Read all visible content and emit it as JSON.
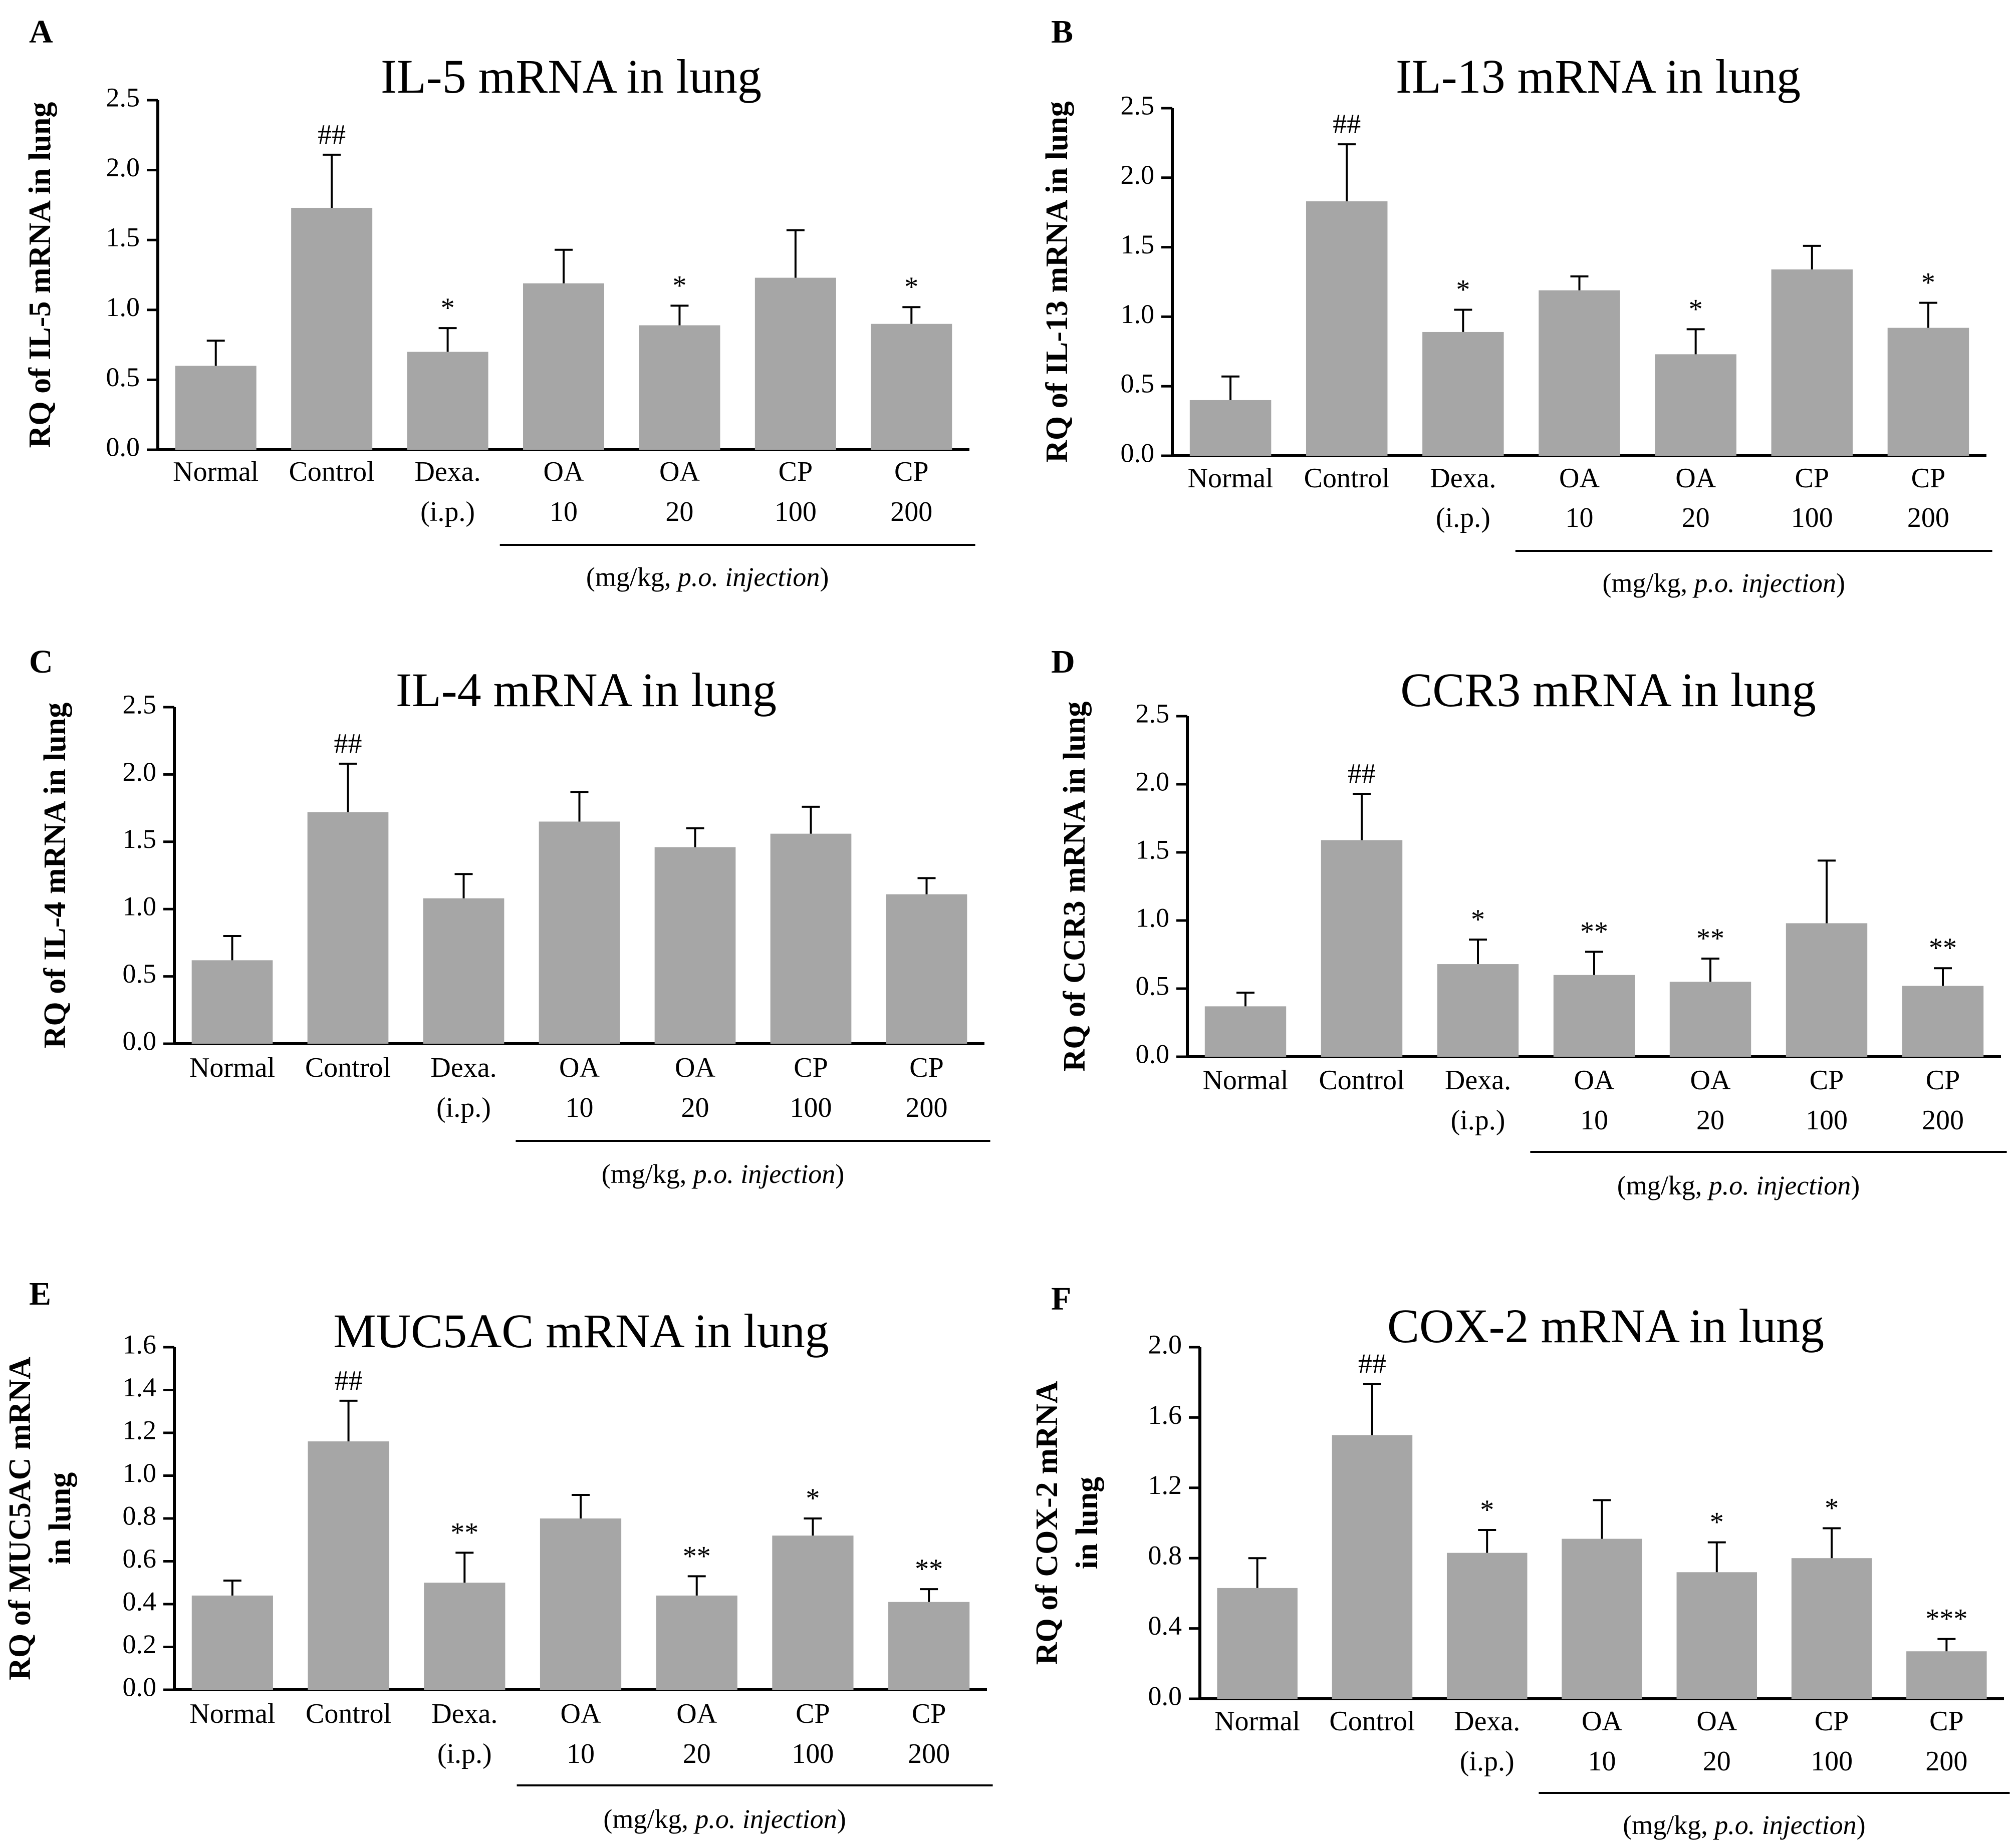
{
  "figure": {
    "group_label_prefix": "(mg/kg,",
    "group_label_route": "p.o. injection",
    "group_label_suffix": ")"
  },
  "colors": {
    "bar": "#a6a6a6",
    "axis": "#000000",
    "error": "#000000",
    "text": "#000000"
  },
  "chart_data": [
    {
      "panel": "A",
      "type": "bar",
      "title": "IL-5 mRNA in lung",
      "ylabel": "RQ of IL-5 mRNA in lung",
      "ylabel_lines": [
        "RQ of IL-5 mRNA in lung"
      ],
      "ylim": [
        0,
        2.5
      ],
      "yticks": [
        "0.0",
        "0.5",
        "1.0",
        "1.5",
        "2.0",
        "2.5"
      ],
      "categories": [
        [
          "Normal"
        ],
        [
          "Control"
        ],
        [
          "Dexa.",
          "(i.p.)"
        ],
        [
          "OA",
          "10"
        ],
        [
          "OA",
          "20"
        ],
        [
          "CP",
          "100"
        ],
        [
          "CP",
          "200"
        ]
      ],
      "values": [
        0.6,
        1.73,
        0.7,
        1.19,
        0.89,
        1.23,
        0.9
      ],
      "errors": [
        0.18,
        0.38,
        0.17,
        0.24,
        0.14,
        0.34,
        0.12
      ],
      "annotations": [
        "",
        "##",
        "*",
        "",
        "*",
        "",
        "*"
      ]
    },
    {
      "panel": "B",
      "type": "bar",
      "title": "IL-13 mRNA in lung",
      "ylabel": "RQ of IL-13 mRNA in lung",
      "ylabel_lines": [
        "RQ of IL-13 mRNA in lung"
      ],
      "ylim": [
        0,
        2.5
      ],
      "yticks": [
        "0.0",
        "0.5",
        "1.0",
        "1.5",
        "2.0",
        "2.5"
      ],
      "categories": [
        [
          "Normal"
        ],
        [
          "Control"
        ],
        [
          "Dexa.",
          "(i.p.)"
        ],
        [
          "OA",
          "10"
        ],
        [
          "OA",
          "20"
        ],
        [
          "CP",
          "100"
        ],
        [
          "CP",
          "200"
        ]
      ],
      "values": [
        0.4,
        1.83,
        0.89,
        1.19,
        0.73,
        1.34,
        0.92
      ],
      "errors": [
        0.17,
        0.41,
        0.16,
        0.1,
        0.18,
        0.17,
        0.18
      ],
      "annotations": [
        "",
        "##",
        "*",
        "",
        "*",
        "",
        "*"
      ]
    },
    {
      "panel": "C",
      "type": "bar",
      "title": "IL-4 mRNA in lung",
      "ylabel": "RQ of IL-4 mRNA in lung",
      "ylabel_lines": [
        "RQ of IL-4 mRNA in lung"
      ],
      "ylim": [
        0,
        2.5
      ],
      "yticks": [
        "0.0",
        "0.5",
        "1.0",
        "1.5",
        "2.0",
        "2.5"
      ],
      "categories": [
        [
          "Normal"
        ],
        [
          "Control"
        ],
        [
          "Dexa.",
          "(i.p.)"
        ],
        [
          "OA",
          "10"
        ],
        [
          "OA",
          "20"
        ],
        [
          "CP",
          "100"
        ],
        [
          "CP",
          "200"
        ]
      ],
      "values": [
        0.62,
        1.72,
        1.08,
        1.65,
        1.46,
        1.56,
        1.11
      ],
      "errors": [
        0.18,
        0.36,
        0.18,
        0.22,
        0.14,
        0.2,
        0.12
      ],
      "annotations": [
        "",
        "##",
        "",
        "",
        "",
        "",
        ""
      ]
    },
    {
      "panel": "D",
      "type": "bar",
      "title": "CCR3 mRNA in lung",
      "ylabel": "RQ of CCR3 mRNA in lung",
      "ylabel_lines": [
        "RQ of CCR3 mRNA in lung"
      ],
      "ylim": [
        0,
        2.5
      ],
      "yticks": [
        "0.0",
        "0.5",
        "1.0",
        "1.5",
        "2.0",
        "2.5"
      ],
      "categories": [
        [
          "Normal"
        ],
        [
          "Control"
        ],
        [
          "Dexa.",
          "(i.p.)"
        ],
        [
          "OA",
          "10"
        ],
        [
          "OA",
          "20"
        ],
        [
          "CP",
          "100"
        ],
        [
          "CP",
          "200"
        ]
      ],
      "values": [
        0.37,
        1.59,
        0.68,
        0.6,
        0.55,
        0.98,
        0.52
      ],
      "errors": [
        0.1,
        0.34,
        0.18,
        0.17,
        0.17,
        0.46,
        0.13
      ],
      "annotations": [
        "",
        "##",
        "*",
        "**",
        "**",
        "",
        "**"
      ]
    },
    {
      "panel": "E",
      "type": "bar",
      "title": "MUC5AC mRNA in lung",
      "ylabel": "RQ of MUC5AC mRNA in lung",
      "ylabel_lines": [
        "RQ of MUC5AC mRNA",
        "in lung"
      ],
      "ylim": [
        0,
        1.6
      ],
      "yticks": [
        "0.0",
        "0.2",
        "0.4",
        "0.6",
        "0.8",
        "1.0",
        "1.2",
        "1.4",
        "1.6"
      ],
      "categories": [
        [
          "Normal"
        ],
        [
          "Control"
        ],
        [
          "Dexa.",
          "(i.p.)"
        ],
        [
          "OA",
          "10"
        ],
        [
          "OA",
          "20"
        ],
        [
          "CP",
          "100"
        ],
        [
          "CP",
          "200"
        ]
      ],
      "values": [
        0.44,
        1.16,
        0.5,
        0.8,
        0.44,
        0.72,
        0.41
      ],
      "errors": [
        0.07,
        0.19,
        0.14,
        0.11,
        0.09,
        0.08,
        0.06
      ],
      "annotations": [
        "",
        "##",
        "**",
        "",
        "**",
        "*",
        "**"
      ]
    },
    {
      "panel": "F",
      "type": "bar",
      "title": "COX-2 mRNA in lung",
      "ylabel": "RQ of COX-2 mRNA in lung",
      "ylabel_lines": [
        "RQ of COX-2 mRNA",
        "in lung"
      ],
      "ylim": [
        0,
        2.0
      ],
      "yticks": [
        "0.0",
        "0.4",
        "0.8",
        "1.2",
        "1.6",
        "2.0"
      ],
      "categories": [
        [
          "Normal"
        ],
        [
          "Control"
        ],
        [
          "Dexa.",
          "(i.p.)"
        ],
        [
          "OA",
          "10"
        ],
        [
          "OA",
          "20"
        ],
        [
          "CP",
          "100"
        ],
        [
          "CP",
          "200"
        ]
      ],
      "values": [
        0.63,
        1.5,
        0.83,
        0.91,
        0.72,
        0.8,
        0.27
      ],
      "errors": [
        0.17,
        0.29,
        0.13,
        0.22,
        0.17,
        0.17,
        0.07
      ],
      "annotations": [
        "",
        "##",
        "*",
        "",
        "*",
        "*",
        "***"
      ]
    }
  ]
}
